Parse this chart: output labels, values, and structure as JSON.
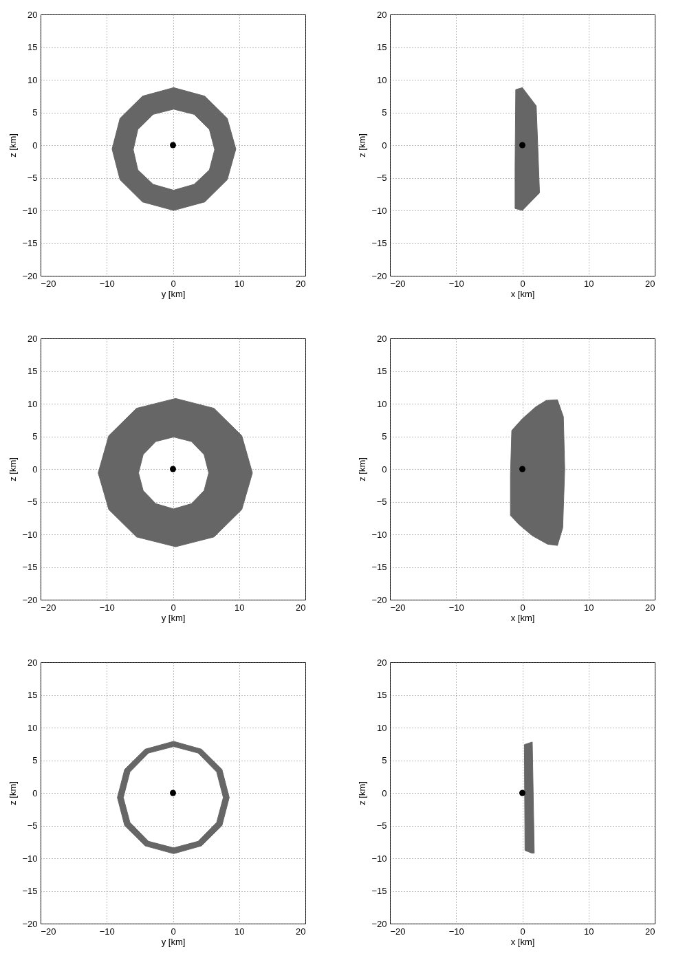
{
  "chart_data": [
    {
      "type": "line",
      "xlabel": "y [km]",
      "ylabel": "z [km]",
      "xlim": [
        -20,
        20
      ],
      "ylim": [
        -20,
        20
      ],
      "xticks": [
        -20,
        -10,
        0,
        10,
        20
      ],
      "yticks": [
        -20,
        -15,
        -10,
        -5,
        0,
        5,
        10,
        15,
        20
      ],
      "grid": true,
      "series": [
        {
          "type": "area",
          "color": "#666666",
          "x": [
            9.5,
            8.2,
            4.8,
            0.1,
            -4.6,
            -8.0,
            -9.2,
            -8.0,
            -4.6,
            0.1,
            4.8,
            8.2,
            9.5,
            6.3,
            5.5,
            3.2,
            0.1,
            -3.0,
            -5.3,
            -6.0,
            -5.3,
            -3.0,
            0.1,
            3.2,
            5.5,
            6.3
          ],
          "values": [
            -0.6,
            4.1,
            7.5,
            8.8,
            7.5,
            4.1,
            -0.6,
            -5.3,
            -8.7,
            -10.0,
            -8.7,
            -5.3,
            -0.6,
            -0.7,
            -3.8,
            -6.0,
            -6.9,
            -6.0,
            -3.8,
            -0.7,
            2.4,
            4.7,
            5.5,
            4.7,
            2.4,
            -0.7
          ]
        },
        {
          "type": "scatter",
          "color": "#000000",
          "marker": "circle",
          "x": [
            0
          ],
          "values": [
            0
          ]
        }
      ]
    },
    {
      "type": "line",
      "xlabel": "x [km]",
      "ylabel": "z [km]",
      "xlim": [
        -20,
        20
      ],
      "ylim": [
        -20,
        20
      ],
      "xticks": [
        -20,
        -10,
        0,
        10,
        20
      ],
      "yticks": [
        -20,
        -15,
        -10,
        -5,
        0,
        5,
        10,
        15,
        20
      ],
      "grid": true,
      "series": [
        {
          "type": "area",
          "color": "#666666",
          "x": [
            -1.0,
            0,
            2.1,
            2.6,
            0,
            -1.1,
            -1.1,
            -1.0
          ],
          "values": [
            8.5,
            8.8,
            6.0,
            -7.3,
            -10.0,
            -9.7,
            -3.2,
            8.5
          ]
        },
        {
          "type": "scatter",
          "color": "#000000",
          "marker": "circle",
          "x": [
            0
          ],
          "values": [
            0
          ]
        }
      ]
    },
    {
      "type": "line",
      "xlabel": "y [km]",
      "ylabel": "z [km]",
      "xlim": [
        -20,
        20
      ],
      "ylim": [
        -20,
        20
      ],
      "xticks": [
        -20,
        -10,
        0,
        10,
        20
      ],
      "yticks": [
        -20,
        -15,
        -10,
        -5,
        0,
        5,
        10,
        15,
        20
      ],
      "grid": true,
      "series": [
        {
          "type": "area",
          "color": "#666666",
          "x": [
            12.0,
            10.4,
            6.2,
            0.4,
            -5.5,
            -9.7,
            -11.3,
            -9.7,
            -5.5,
            0.4,
            6.2,
            10.4,
            12.0,
            5.4,
            4.7,
            2.8,
            0.1,
            -2.6,
            -4.5,
            -5.2,
            -4.5,
            -2.6,
            0.1,
            2.8,
            4.7,
            5.4
          ],
          "values": [
            -0.6,
            5.1,
            9.3,
            10.8,
            9.3,
            5.1,
            -0.6,
            -6.2,
            -10.4,
            -11.9,
            -10.4,
            -6.2,
            -0.6,
            -0.6,
            -3.3,
            -5.3,
            -6.1,
            -5.3,
            -3.3,
            -0.6,
            2.2,
            4.2,
            4.9,
            4.2,
            2.2,
            -0.6
          ]
        },
        {
          "type": "scatter",
          "color": "#000000",
          "marker": "circle",
          "x": [
            0
          ],
          "values": [
            0
          ]
        }
      ]
    },
    {
      "type": "line",
      "xlabel": "x [km]",
      "ylabel": "z [km]",
      "xlim": [
        -20,
        20
      ],
      "ylim": [
        -20,
        20
      ],
      "xticks": [
        -20,
        -10,
        0,
        10,
        20
      ],
      "yticks": [
        -20,
        -15,
        -10,
        -5,
        0,
        5,
        10,
        15,
        20
      ],
      "grid": true,
      "series": [
        {
          "type": "area",
          "color": "#666666",
          "x": [
            -1.6,
            0,
            2.0,
            3.6,
            5.3,
            6.2,
            6.4,
            6.1,
            5.3,
            3.8,
            1.5,
            -0.5,
            -1.8,
            -1.8,
            -1.6
          ],
          "values": [
            5.9,
            7.7,
            9.5,
            10.5,
            10.6,
            8.0,
            0,
            -9.0,
            -11.7,
            -11.5,
            -10.2,
            -8.5,
            -7.1,
            -1.0,
            5.9
          ]
        },
        {
          "type": "scatter",
          "color": "#000000",
          "marker": "circle",
          "x": [
            0
          ],
          "values": [
            0
          ]
        }
      ]
    },
    {
      "type": "line",
      "xlabel": "y [km]",
      "ylabel": "z [km]",
      "xlim": [
        -20,
        20
      ],
      "ylim": [
        -20,
        20
      ],
      "xticks": [
        -20,
        -10,
        0,
        10,
        20
      ],
      "yticks": [
        -20,
        -15,
        -10,
        -5,
        0,
        5,
        10,
        15,
        20
      ],
      "grid": true,
      "series": [
        {
          "type": "area",
          "color": "#666666",
          "x": [
            8.5,
            7.4,
            4.3,
            0.1,
            -4.2,
            -7.3,
            -8.4,
            -7.3,
            -4.2,
            0.1,
            4.3,
            7.4,
            8.5,
            7.6,
            6.6,
            3.8,
            0.1,
            -3.7,
            -6.5,
            -7.5,
            -6.5,
            -3.7,
            0.1,
            3.8,
            6.6,
            7.6
          ],
          "values": [
            -0.7,
            3.6,
            6.7,
            7.9,
            6.7,
            3.6,
            -0.7,
            -5.0,
            -8.1,
            -9.3,
            -8.1,
            -5.0,
            -0.7,
            -0.7,
            -4.5,
            -7.4,
            -8.4,
            -7.4,
            -4.5,
            -0.7,
            3.2,
            6.1,
            7.1,
            6.1,
            3.2,
            -0.7
          ]
        },
        {
          "type": "scatter",
          "color": "#000000",
          "marker": "circle",
          "x": [
            0
          ],
          "values": [
            0
          ]
        }
      ]
    },
    {
      "type": "line",
      "xlabel": "x [km]",
      "ylabel": "z [km]",
      "xlim": [
        -20,
        20
      ],
      "ylim": [
        -20,
        20
      ],
      "xticks": [
        -20,
        -10,
        0,
        10,
        20
      ],
      "yticks": [
        -20,
        -15,
        -10,
        -5,
        0,
        5,
        10,
        15,
        20
      ],
      "grid": true,
      "series": [
        {
          "type": "area",
          "color": "#666666",
          "x": [
            0.3,
            1.5,
            1.8,
            1.4,
            0.4,
            0.3
          ],
          "values": [
            7.4,
            7.8,
            -9.2,
            -9.2,
            -8.8,
            7.4
          ]
        },
        {
          "type": "scatter",
          "color": "#000000",
          "marker": "circle",
          "x": [
            0
          ],
          "values": [
            0
          ]
        }
      ]
    }
  ]
}
